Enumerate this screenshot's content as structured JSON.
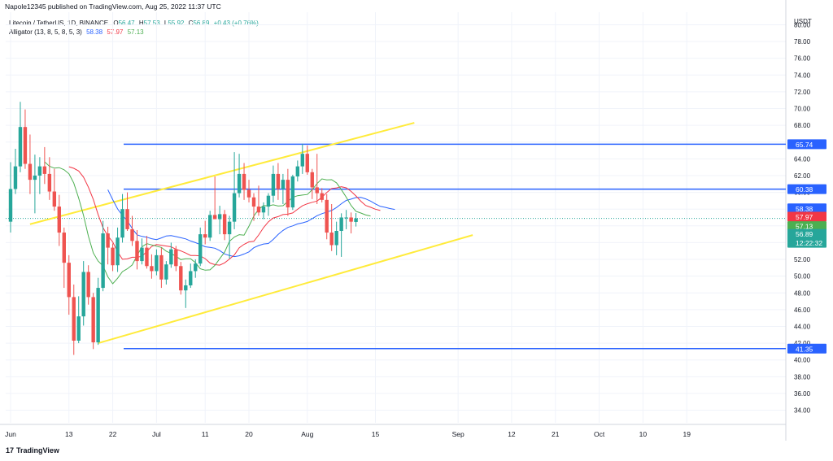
{
  "header": {
    "published": "Napole12345 published on TradingView.com, Aug 25, 2022 11:37 UTC"
  },
  "legend": {
    "symbol": "Litecoin / TetherUS, 1D, BINANCE",
    "o_label": "O",
    "o": "56.47",
    "h_label": "H",
    "h": "57.53",
    "l_label": "L",
    "l": "55.92",
    "c_label": "C",
    "c": "56.89",
    "change": "+0.43 (+0.76%)",
    "alligator_name": "Alligator (13, 8, 5, 8, 5, 3)",
    "jaw": "58.38",
    "teeth": "57.97",
    "lips": "57.13"
  },
  "footer": {
    "brand": "TradingView",
    "mark": "17"
  },
  "colors": {
    "up": "#26a69a",
    "down": "#ef5350",
    "jaw": "#2962ff",
    "teeth": "#f23645",
    "lips": "#4caf50",
    "hline": "#2962ff",
    "channel": "#ffeb3b",
    "grid": "#f0f3fa"
  },
  "chart_data": {
    "type": "candlestick",
    "currency": "USDT",
    "ylim": [
      32.5,
      81.5
    ],
    "y_ticks": [
      "34.00",
      "36.00",
      "38.00",
      "40.00",
      "42.00",
      "44.00",
      "46.00",
      "48.00",
      "50.00",
      "52.00",
      "54.00",
      "56.00",
      "58.00",
      "60.00",
      "62.00",
      "64.00",
      "66.00",
      "68.00",
      "70.00",
      "72.00",
      "74.00",
      "76.00",
      "78.00",
      "80.00"
    ],
    "x_ticks": [
      {
        "label": "Jun",
        "day": 1
      },
      {
        "label": "13",
        "day": 13
      },
      {
        "label": "22",
        "day": 22
      },
      {
        "label": "Jul",
        "day": 31
      },
      {
        "label": "11",
        "day": 41
      },
      {
        "label": "20",
        "day": 50
      },
      {
        "label": "Aug",
        "day": 62
      },
      {
        "label": "15",
        "day": 76
      },
      {
        "label": "Sep",
        "day": 93
      },
      {
        "label": "12",
        "day": 104
      },
      {
        "label": "21",
        "day": 113
      },
      {
        "label": "Oct",
        "day": 122
      },
      {
        "label": "10",
        "day": 131
      },
      {
        "label": "19",
        "day": 140
      }
    ],
    "candles": [
      [
        56.5,
        63.6,
        55.2,
        60.4
      ],
      [
        60.4,
        65.2,
        59.8,
        63.1
      ],
      [
        63.1,
        70.8,
        62.4,
        67.8
      ],
      [
        67.8,
        69.9,
        62.8,
        63.4
      ],
      [
        63.4,
        66.9,
        59.8,
        61.5
      ],
      [
        61.5,
        64.5,
        57.5,
        62.0
      ],
      [
        62.0,
        64.2,
        59.8,
        63.1
      ],
      [
        63.1,
        65.4,
        61.0,
        62.2
      ],
      [
        62.2,
        64.2,
        59.1,
        60.1
      ],
      [
        60.1,
        62.8,
        57.8,
        58.3
      ],
      [
        58.3,
        59.7,
        53.6,
        55.2
      ],
      [
        55.2,
        55.8,
        48.6,
        51.6
      ],
      [
        51.6,
        52.5,
        45.4,
        47.5
      ],
      [
        47.5,
        49.0,
        40.6,
        42.3
      ],
      [
        42.3,
        47.6,
        42.0,
        45.2
      ],
      [
        45.2,
        51.8,
        44.1,
        50.5
      ],
      [
        50.5,
        51.3,
        46.6,
        47.5
      ],
      [
        47.5,
        48.0,
        41.3,
        42.1
      ],
      [
        42.1,
        49.8,
        41.8,
        48.6
      ],
      [
        48.6,
        56.6,
        48.2,
        55.1
      ],
      [
        55.1,
        55.9,
        51.4,
        53.4
      ],
      [
        53.4,
        53.9,
        50.6,
        51.3
      ],
      [
        51.3,
        55.8,
        50.5,
        54.6
      ],
      [
        54.6,
        59.8,
        54.0,
        58.0
      ],
      [
        58.0,
        60.0,
        55.4,
        55.6
      ],
      [
        55.6,
        57.2,
        53.6,
        54.2
      ],
      [
        54.2,
        55.5,
        50.8,
        51.8
      ],
      [
        51.8,
        54.5,
        51.4,
        53.4
      ],
      [
        53.4,
        54.8,
        50.9,
        51.2
      ],
      [
        51.2,
        52.6,
        49.7,
        50.6
      ],
      [
        50.6,
        53.2,
        50.1,
        52.5
      ],
      [
        52.5,
        53.4,
        48.6,
        49.6
      ],
      [
        49.6,
        51.8,
        49.0,
        51.4
      ],
      [
        51.4,
        54.0,
        51.0,
        53.2
      ],
      [
        53.2,
        53.6,
        50.6,
        51.2
      ],
      [
        51.2,
        51.7,
        47.8,
        48.3
      ],
      [
        48.3,
        49.6,
        46.2,
        48.9
      ],
      [
        48.9,
        51.5,
        48.6,
        50.6
      ],
      [
        50.6,
        52.0,
        49.8,
        51.5
      ],
      [
        51.5,
        55.8,
        51.2,
        55.0
      ],
      [
        55.0,
        56.6,
        53.8,
        54.6
      ],
      [
        54.6,
        57.8,
        54.2,
        57.3
      ],
      [
        57.3,
        61.9,
        56.8,
        56.8
      ],
      [
        56.8,
        58.4,
        55.0,
        57.4
      ],
      [
        57.4,
        57.9,
        54.3,
        55.0
      ],
      [
        55.0,
        57.2,
        52.1,
        56.5
      ],
      [
        56.5,
        64.8,
        55.6,
        59.9
      ],
      [
        59.9,
        64.6,
        59.4,
        62.2
      ],
      [
        62.2,
        63.5,
        59.1,
        60.3
      ],
      [
        60.3,
        61.5,
        58.8,
        59.4
      ],
      [
        59.4,
        59.9,
        56.6,
        58.3
      ],
      [
        58.3,
        60.8,
        57.2,
        57.6
      ],
      [
        57.6,
        58.8,
        56.8,
        58.3
      ],
      [
        58.3,
        59.9,
        57.2,
        59.6
      ],
      [
        59.6,
        63.2,
        58.8,
        62.2
      ],
      [
        62.2,
        63.5,
        59.1,
        60.4
      ],
      [
        60.4,
        62.2,
        58.6,
        61.5
      ],
      [
        61.5,
        62.8,
        57.2,
        58.2
      ],
      [
        58.2,
        62.1,
        57.9,
        61.9
      ],
      [
        61.9,
        63.8,
        61.3,
        63.1
      ],
      [
        63.1,
        65.8,
        62.2,
        64.6
      ],
      [
        64.6,
        65.6,
        62.1,
        62.4
      ],
      [
        62.4,
        62.8,
        59.2,
        60.6
      ],
      [
        60.6,
        64.6,
        58.6,
        59.9
      ],
      [
        59.9,
        60.5,
        58.8,
        59.1
      ],
      [
        59.1,
        59.8,
        54.4,
        55.2
      ],
      [
        55.2,
        58.6,
        53.0,
        53.7
      ],
      [
        53.7,
        56.5,
        52.5,
        55.4
      ],
      [
        55.4,
        57.5,
        52.3,
        57.0
      ],
      [
        57.0,
        57.9,
        55.6,
        57.0
      ],
      [
        57.0,
        57.6,
        55.1,
        56.5
      ],
      [
        56.47,
        57.53,
        55.92,
        56.89
      ]
    ],
    "series": [
      {
        "name": "Alligator Jaw",
        "value": 58.38
      },
      {
        "name": "Alligator Teeth",
        "value": 57.97
      },
      {
        "name": "Alligator Lips",
        "value": 57.13
      }
    ],
    "horizontal_lines": [
      {
        "value": 65.74,
        "label": "65.74"
      },
      {
        "value": 60.38,
        "label": "60.38"
      },
      {
        "value": 41.35,
        "label": "41.35"
      }
    ],
    "channel": [
      {
        "x1": 5,
        "y1": 56.2,
        "x2": 84,
        "y2": 68.3
      },
      {
        "x1": 19,
        "y1": 42.0,
        "x2": 96,
        "y2": 54.9
      }
    ],
    "price_labels": [
      {
        "text": "58.38",
        "value": 58.38,
        "color": "#2962ff"
      },
      {
        "text": "57.97",
        "value": 57.97,
        "color": "#f23645"
      },
      {
        "text": "57.13",
        "value": 57.13,
        "color": "#4caf50"
      },
      {
        "text": "56.89",
        "value": 56.89,
        "color": "#26a69a"
      },
      {
        "text": "12:22:32",
        "value": 56.89,
        "color": "#26a69a"
      }
    ]
  }
}
